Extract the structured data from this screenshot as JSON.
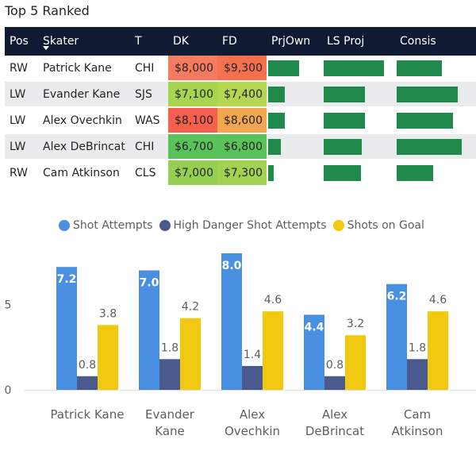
{
  "title": "Top 5 Ranked",
  "table": {
    "headers": [
      "Pos",
      "Skater",
      "T",
      "DK",
      "FD",
      "PrjOwn",
      "LS Proj",
      "Consis"
    ],
    "rows": [
      {
        "pos": "RW",
        "skater": "Patrick Kane",
        "team": "CHI",
        "dk": "$8,000",
        "fd": "$9,300",
        "dk_color": "#f47b5f",
        "fd_color": "#f4704f",
        "prjown": 0.68,
        "lsproj": 0.93,
        "consis": 0.69
      },
      {
        "pos": "LW",
        "skater": "Evander Kane",
        "team": "SJS",
        "dk": "$7,100",
        "fd": "$7,400",
        "dk_color": "#a8d54f",
        "fd_color": "#b5d650",
        "prjown": 0.37,
        "lsproj": 0.64,
        "consis": 0.94
      },
      {
        "pos": "LW",
        "skater": "Alex Ovechkin",
        "team": "WAS",
        "dk": "$8,100",
        "fd": "$8,600",
        "dk_color": "#f4604d",
        "fd_color": "#f2a64f",
        "prjown": 0.37,
        "lsproj": 0.64,
        "consis": 0.86
      },
      {
        "pos": "LW",
        "skater": "Alex DeBrincat",
        "team": "CHI",
        "dk": "$6,700",
        "fd": "$6,800",
        "dk_color": "#5ac25a",
        "fd_color": "#5ac25a",
        "prjown": 0.28,
        "lsproj": 0.59,
        "consis": 1.0
      },
      {
        "pos": "RW",
        "skater": "Cam Atkinson",
        "team": "CLS",
        "dk": "$7,000",
        "fd": "$7,300",
        "dk_color": "#94cf52",
        "fd_color": "#a2d251",
        "prjown": 0.12,
        "lsproj": 0.57,
        "consis": 0.56
      }
    ]
  },
  "chart_data": {
    "type": "bar",
    "categories": [
      "Patrick Kane",
      "Evander Kane",
      "Alex Ovechkin",
      "Alex DeBrincat",
      "Cam Atkinson"
    ],
    "series": [
      {
        "name": "Shot Attempts",
        "color": "#4a90e2",
        "values": [
          7.2,
          7.0,
          8.0,
          4.4,
          6.2
        ]
      },
      {
        "name": "High Danger Shot Attempts",
        "color": "#4a5a8c",
        "values": [
          0.8,
          1.8,
          1.4,
          0.8,
          1.8
        ]
      },
      {
        "name": "Shots on Goal",
        "color": "#f2c811",
        "values": [
          3.8,
          4.2,
          4.6,
          3.2,
          4.6
        ]
      }
    ],
    "yticks": [
      0,
      5
    ],
    "ylim": [
      0,
      8.5
    ],
    "legend": "top-center"
  }
}
